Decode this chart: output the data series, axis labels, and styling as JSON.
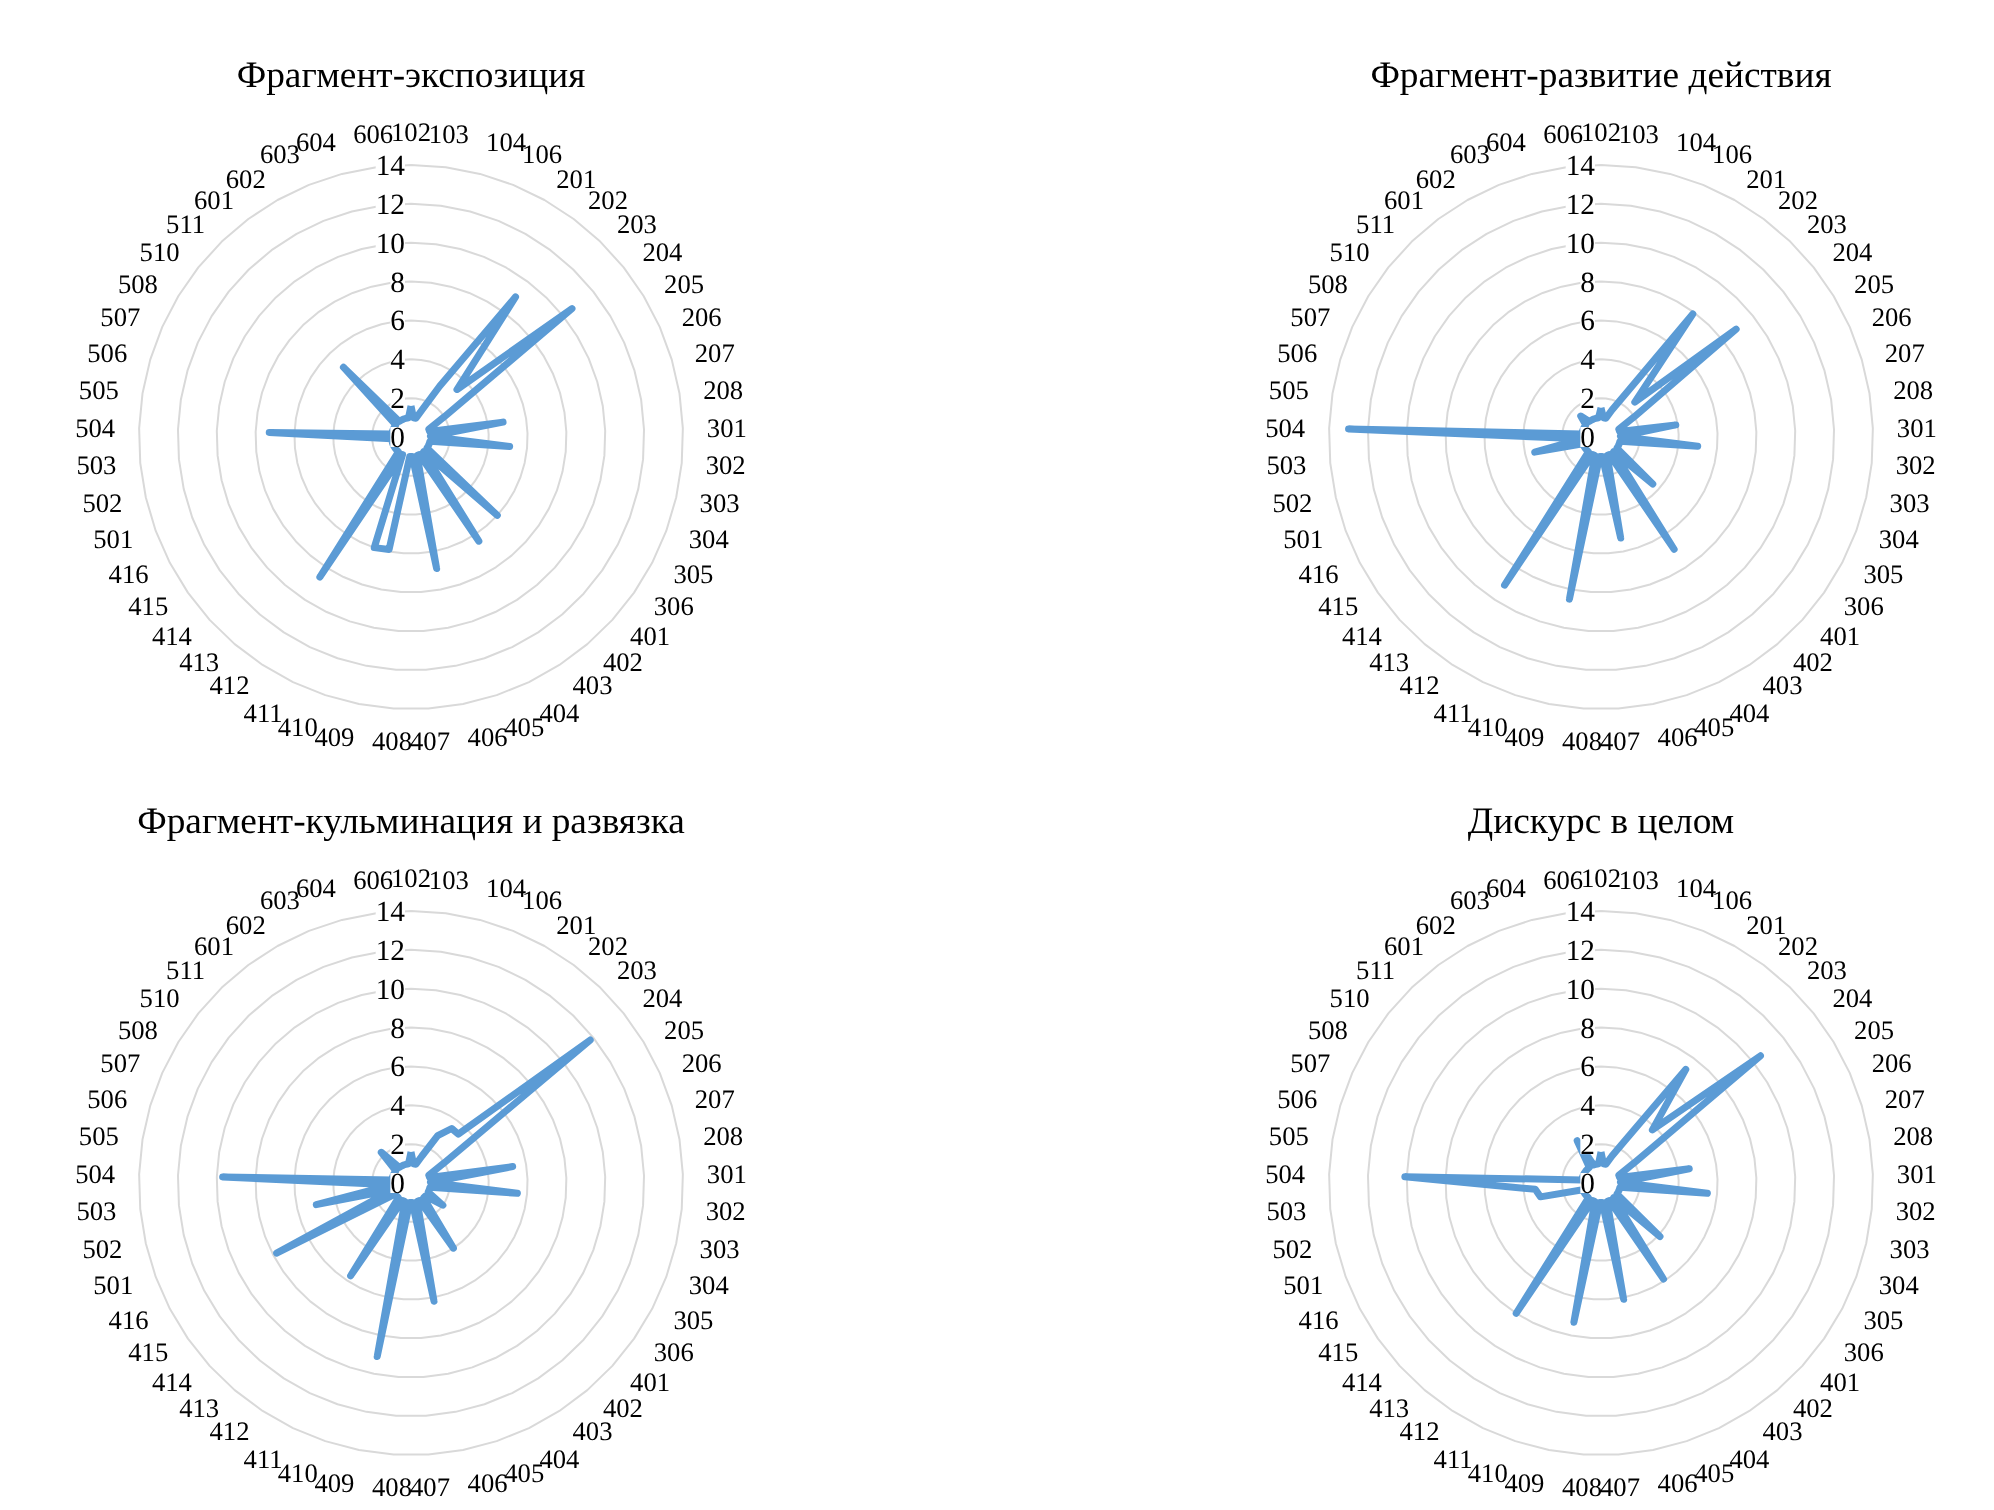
{
  "chart_data": [
    {
      "type": "radar",
      "title": "Фрагмент-экспозиция",
      "categories": [
        "102",
        "103",
        "104",
        "106",
        "201",
        "202",
        "203",
        "204",
        "205",
        "206",
        "207",
        "208",
        "301",
        "302",
        "303",
        "304",
        "305",
        "306",
        "401",
        "402",
        "403",
        "404",
        "405",
        "406",
        "407",
        "408",
        "409",
        "410",
        "411",
        "412",
        "413",
        "414",
        "415",
        "416",
        "501",
        "502",
        "503",
        "504",
        "505",
        "506",
        "507",
        "508",
        "510",
        "511",
        "601",
        "602",
        "603",
        "604",
        "606"
      ],
      "ylim": [
        0,
        14
      ],
      "yticks": [
        0,
        2,
        4,
        6,
        8,
        10,
        12,
        14
      ],
      "grid": true,
      "series": [
        {
          "color": "#5b9bd5",
          "values": [
            1.6,
            1,
            1,
            1.5,
            3,
            9,
            3.4,
            10.6,
            2,
            1,
            1,
            4.8,
            1,
            5.1,
            1,
            1,
            1,
            1,
            6,
            1,
            6.4,
            1,
            1,
            6.9,
            1,
            1,
            5.9,
            6,
            1,
            8.6,
            1,
            1,
            1,
            1,
            1,
            1,
            1,
            7.3,
            1,
            1,
            1,
            1,
            1,
            5,
            1,
            1,
            1,
            1,
            1
          ]
        }
      ]
    },
    {
      "type": "radar",
      "title": "Фрагмент-развитие действия",
      "categories": [
        "102",
        "103",
        "104",
        "106",
        "201",
        "202",
        "203",
        "204",
        "205",
        "206",
        "207",
        "208",
        "301",
        "302",
        "303",
        "304",
        "305",
        "306",
        "401",
        "402",
        "403",
        "404",
        "405",
        "406",
        "407",
        "408",
        "409",
        "410",
        "411",
        "412",
        "413",
        "414",
        "415",
        "416",
        "501",
        "502",
        "503",
        "504",
        "505",
        "506",
        "507",
        "508",
        "510",
        "511",
        "601",
        "602",
        "603",
        "604",
        "606"
      ],
      "ylim": [
        0,
        14
      ],
      "yticks": [
        0,
        2,
        4,
        6,
        8,
        10,
        12,
        14
      ],
      "grid": true,
      "series": [
        {
          "color": "#5b9bd5",
          "values": [
            1.5,
            1,
            1,
            1.5,
            2.5,
            7.9,
            2.5,
            8.9,
            2,
            1,
            1,
            3.9,
            1,
            5,
            1,
            1,
            1,
            1,
            3.6,
            1,
            6.9,
            1,
            1,
            5.3,
            1,
            1,
            8.5,
            1,
            1,
            9.1,
            1,
            1,
            1,
            1,
            1,
            3.5,
            1,
            13,
            1,
            1,
            1,
            1,
            1,
            1.5,
            1,
            1,
            1,
            1,
            1
          ]
        }
      ]
    },
    {
      "type": "radar",
      "title": "Фрагмент-кульминация и развязка",
      "categories": [
        "102",
        "103",
        "104",
        "106",
        "201",
        "202",
        "203",
        "204",
        "205",
        "206",
        "207",
        "208",
        "301",
        "302",
        "303",
        "304",
        "305",
        "306",
        "401",
        "402",
        "403",
        "404",
        "405",
        "406",
        "407",
        "408",
        "409",
        "410",
        "411",
        "412",
        "413",
        "414",
        "415",
        "416",
        "501",
        "502",
        "503",
        "504",
        "505",
        "506",
        "507",
        "508",
        "510",
        "511",
        "601",
        "602",
        "603",
        "604",
        "606"
      ],
      "ylim": [
        0,
        14
      ],
      "yticks": [
        0,
        2,
        4,
        6,
        8,
        10,
        12,
        14
      ],
      "grid": true,
      "series": [
        {
          "color": "#5b9bd5",
          "values": [
            1.6,
            1,
            1,
            1.5,
            2.8,
            3.5,
            3.5,
            11.8,
            2,
            1,
            1,
            5.3,
            1,
            5.5,
            1,
            1,
            1,
            2,
            1,
            1,
            4,
            1,
            1,
            6.2,
            1,
            1,
            9.1,
            1,
            1,
            5.7,
            1,
            1,
            1,
            7.8,
            1,
            5,
            1,
            9.7,
            1,
            1,
            1,
            1,
            1,
            2.2,
            1,
            1,
            1,
            1,
            1
          ]
        }
      ]
    },
    {
      "type": "radar",
      "title": "Дискурс в целом",
      "categories": [
        "102",
        "103",
        "104",
        "106",
        "201",
        "202",
        "203",
        "204",
        "205",
        "206",
        "207",
        "208",
        "301",
        "302",
        "303",
        "304",
        "305",
        "306",
        "401",
        "402",
        "403",
        "404",
        "405",
        "406",
        "407",
        "408",
        "409",
        "410",
        "411",
        "412",
        "413",
        "414",
        "415",
        "416",
        "501",
        "502",
        "503",
        "504",
        "505",
        "506",
        "507",
        "508",
        "510",
        "511",
        "601",
        "602",
        "603",
        "604",
        "606"
      ],
      "ylim": [
        0,
        14
      ],
      "yticks": [
        0,
        2,
        4,
        6,
        8,
        10,
        12,
        14
      ],
      "grid": true,
      "series": [
        {
          "color": "#5b9bd5",
          "values": [
            1.6,
            1,
            1,
            1.5,
            2.5,
            7.3,
            3.8,
            10.5,
            2,
            1,
            1,
            4.6,
            1,
            5.5,
            1,
            1,
            1,
            1,
            4.1,
            1,
            5.9,
            1,
            1,
            6.1,
            1,
            1,
            7.3,
            1,
            1,
            8,
            1,
            1,
            1,
            1,
            1,
            3.2,
            3.4,
            10.1,
            1,
            1,
            1,
            1,
            1,
            1,
            1,
            2.5,
            1,
            1,
            1
          ]
        }
      ]
    }
  ]
}
